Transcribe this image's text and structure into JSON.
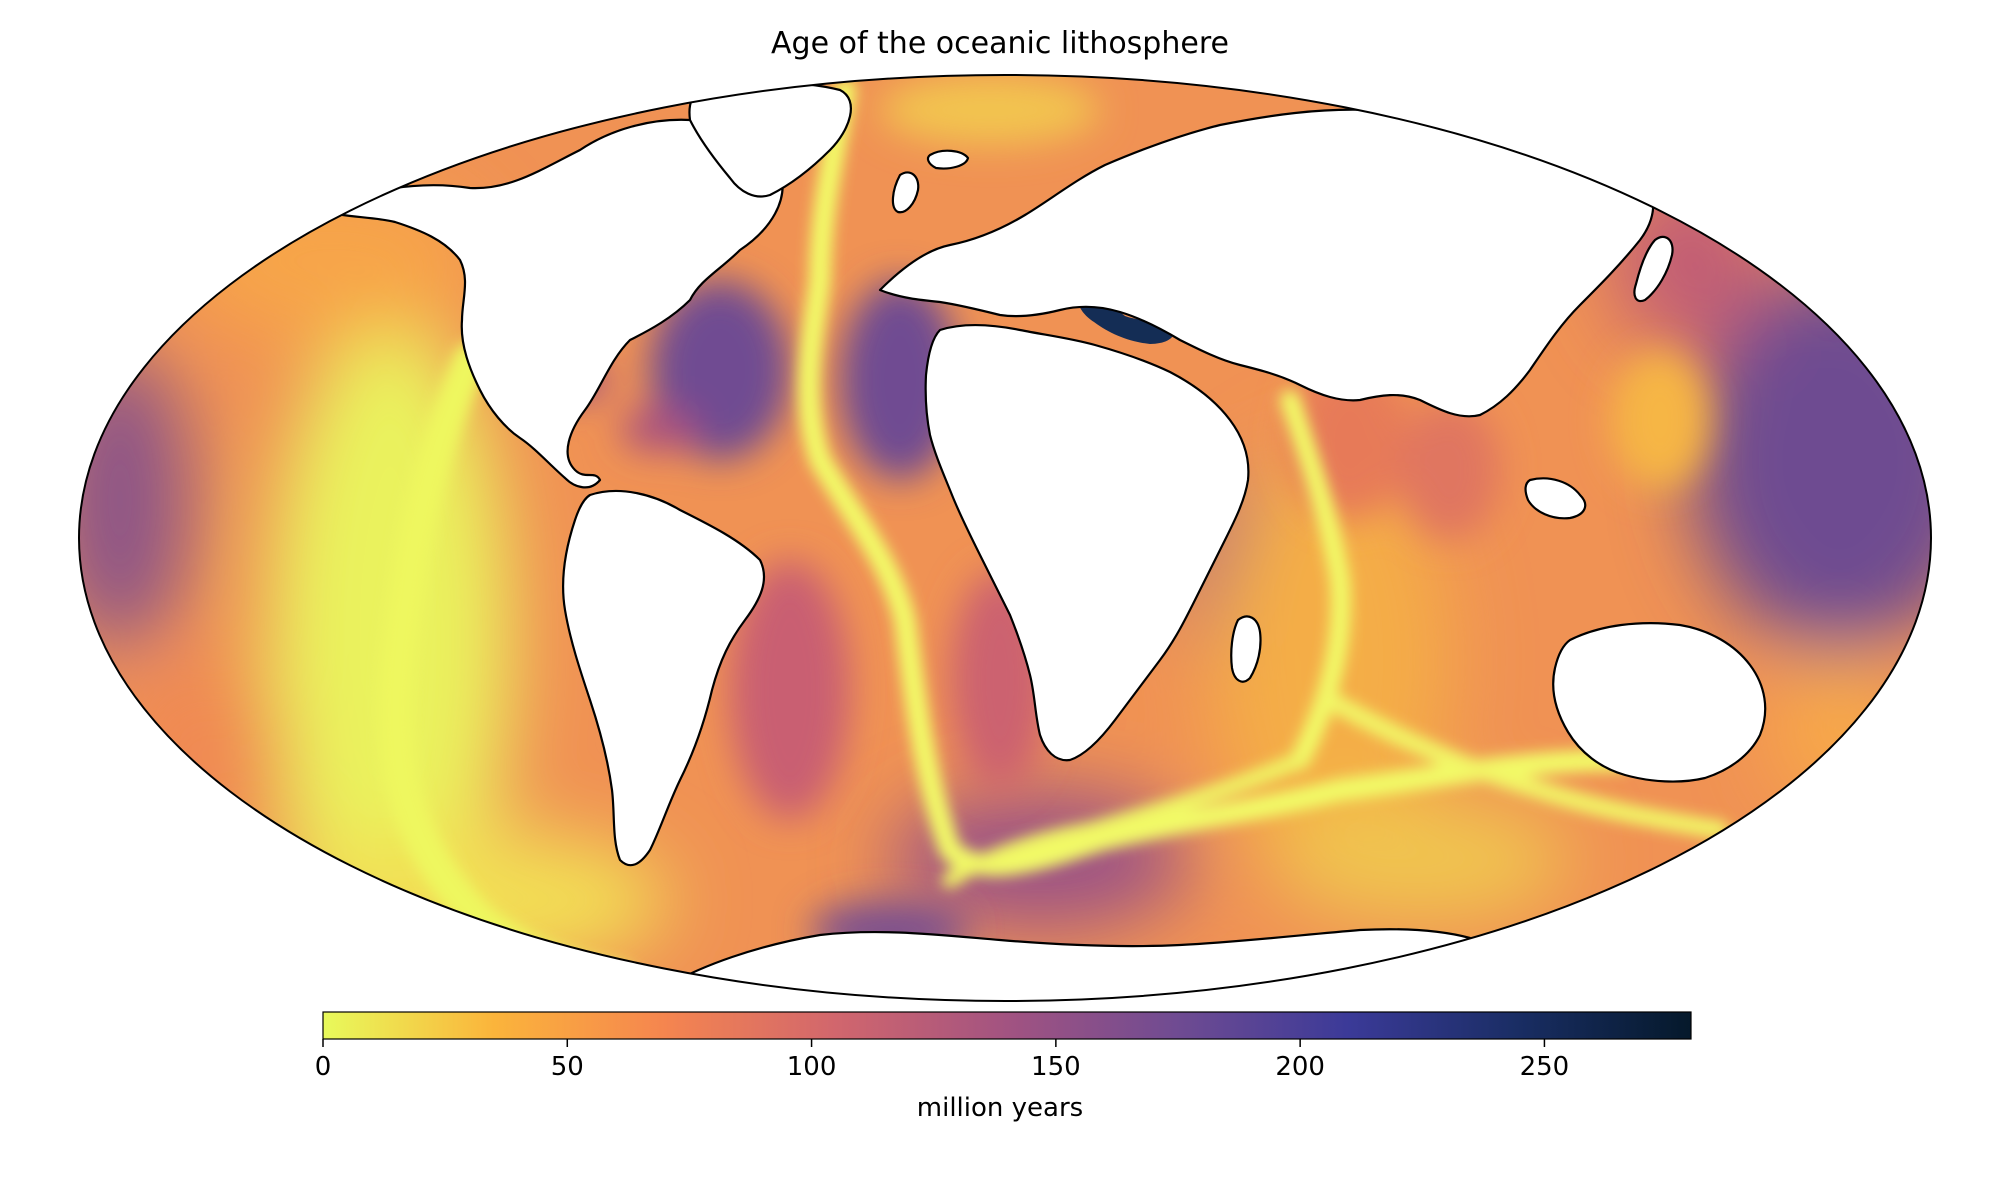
{
  "title": "Age of the oceanic lithosphere",
  "projection": "mollweide",
  "colorbar": {
    "label": "million years",
    "min": 0,
    "max": 280,
    "ticks": [
      0,
      50,
      100,
      150,
      200,
      250
    ],
    "tick_labels": [
      "0",
      "50",
      "100",
      "150",
      "200",
      "250"
    ],
    "colormap": [
      "#e8fa5b",
      "#fbb43b",
      "#f5854f",
      "#d1666d",
      "#a25381",
      "#6f4b92",
      "#3b3a98",
      "#192d63",
      "#05192b"
    ]
  },
  "colors": {
    "land": "#ffffff",
    "coastline": "#000000",
    "young_crust": "#e8fa5b",
    "mid_crust": "#f5854f",
    "old_crust": "#6f4b92",
    "oldest_crust": "#142d55"
  }
}
